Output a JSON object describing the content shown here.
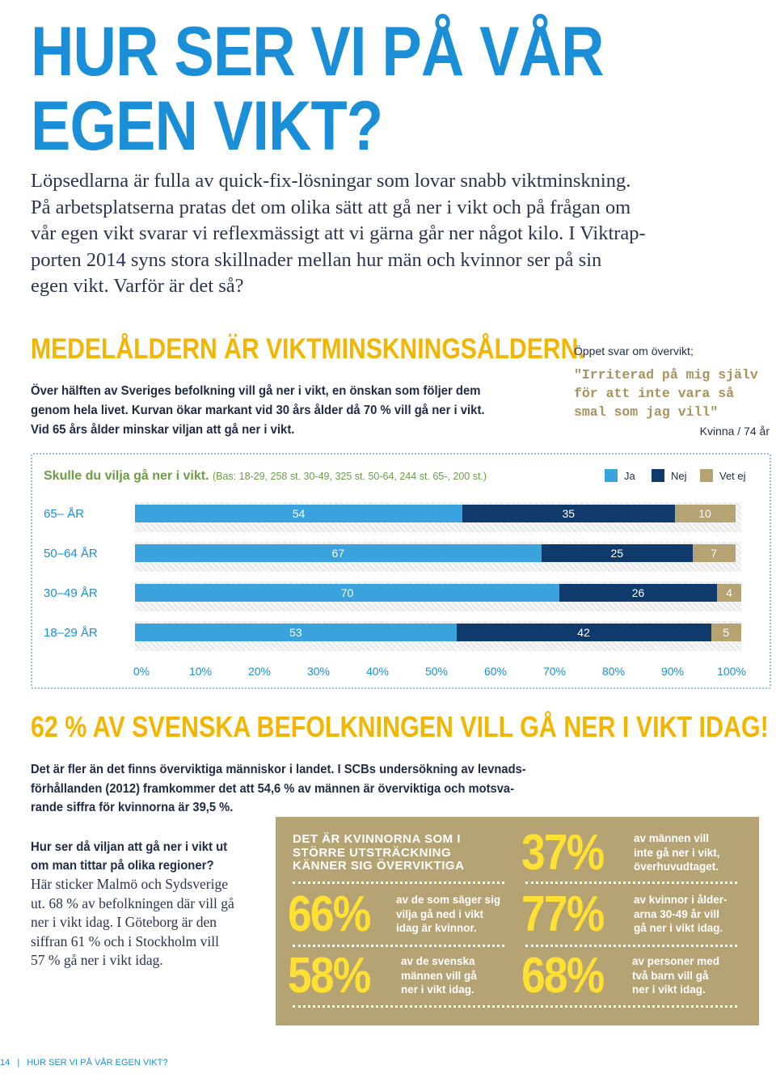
{
  "title_line1": "HUR SER VI PÅ VÅR",
  "title_line2": "EGEN VIKT?",
  "intro_lines": [
    "Löpsedlarna är fulla av quick-fix-lösningar som lovar snabb viktminskning.",
    "På arbetsplatserna pratas det om olika sätt att gå ner i vikt och på frågan om",
    "vår egen vikt svarar vi reflexmässigt att vi gärna går ner något kilo. I Viktrap-",
    "porten 2014 syns stora skillnader mellan hur män och kvinnor ser på sin",
    "egen vikt. Varför är det så?"
  ],
  "section_heading": "MEDELÅLDERN ÄR VIKTMINSKNINGSÅLDERN.",
  "section_lines": [
    "Över hälften av Sveriges befolkning vill gå ner i vikt, en önskan som följer dem",
    "genom hela livet. Kurvan ökar markant vid 30 års ålder då 70 % vill gå ner i vikt.",
    "Vid 65 års ålder minskar viljan att gå ner i vikt."
  ],
  "quote": {
    "label": "Öppet svar om övervikt;",
    "lines": [
      "\"Irriterad på mig själv",
      "för att inte vara så",
      "smal som jag vill\""
    ],
    "attribution": "Kvinna / 74 år"
  },
  "chart_data": {
    "type": "bar",
    "orientation": "horizontal",
    "stacked": true,
    "title": "Skulle du vilja gå ner i vikt.",
    "subtitle": "(Bas: 18-29, 258 st. 30-49, 325 st. 50-64, 244 st. 65-, 200 st.)",
    "categories": [
      "65– ÅR",
      "50–64 ÅR",
      "30–49 ÅR",
      "18–29 ÅR"
    ],
    "series": [
      {
        "name": "Ja",
        "values": [
          54,
          67,
          70,
          53
        ],
        "color": "#3aa3de"
      },
      {
        "name": "Nej",
        "values": [
          35,
          25,
          26,
          42
        ],
        "color": "#0f3a6b"
      },
      {
        "name": "Vet ej",
        "values": [
          10,
          7,
          4,
          5
        ],
        "color": "#b5a373"
      }
    ],
    "xticks": [
      "0%",
      "10%",
      "20%",
      "30%",
      "40%",
      "50%",
      "60%",
      "70%",
      "80%",
      "90%",
      "100%"
    ],
    "xlim": [
      0,
      100
    ],
    "legend_position": "top-right"
  },
  "stat_heading": "62 % AV SVENSKA BEFOLKNINGEN VILL GÅ NER I VIKT IDAG!",
  "stat_lines": [
    "Det är fler än det finns överviktiga människor i landet. I SCBs undersökning av levnads-",
    "förhållanden (2012) framkommer det att 54,6 % av männen är överviktiga och motsva-",
    "rande siffra för kvinnorna är 39,5 %."
  ],
  "region": {
    "question_lines": [
      "Hur ser då viljan att gå ner i vikt ut",
      "om man tittar på olika regioner?"
    ],
    "answer_lines": [
      "Här sticker Malmö och Sydsverige",
      "ut. 68 % av befolkningen där vill gå",
      "ner i vikt idag. I Göteborg är den",
      "siffran 61 % och i Stockholm vill",
      "57 % gå ner i vikt idag."
    ]
  },
  "infobox": {
    "heading_lines": [
      "DET ÄR KVINNORNA SOM I",
      "STÖRRE UTSTRÄCKNING",
      "KÄNNER SIG ÖVERVIKTIGA"
    ],
    "stats": [
      {
        "value": "66%",
        "lines": [
          "av de som säger sig",
          "vilja gå ned i vikt",
          "idag är kvinnor."
        ]
      },
      {
        "value": "58%",
        "lines": [
          "av de svenska",
          "männen vill gå",
          "ner i vikt idag."
        ]
      },
      {
        "value": "37%",
        "lines": [
          "av männen vill",
          "inte gå ner i vikt,",
          "överhuvudtaget."
        ]
      },
      {
        "value": "77%",
        "lines": [
          "av kvinnor i ålder-",
          "arna 30-49 år vill",
          "gå ner i vikt idag."
        ]
      },
      {
        "value": "68%",
        "lines": [
          "av personer med",
          "två barn vill gå",
          "ner i vikt idag."
        ]
      }
    ]
  },
  "footer": {
    "page": "14",
    "text": "HUR SER VI PÅ VÅR EGEN VIKT?"
  },
  "colors": {
    "blue": "#1a8fd8",
    "yellow": "#f2b600",
    "gold_box": "#b5a373",
    "navy": "#0f3a6b"
  }
}
